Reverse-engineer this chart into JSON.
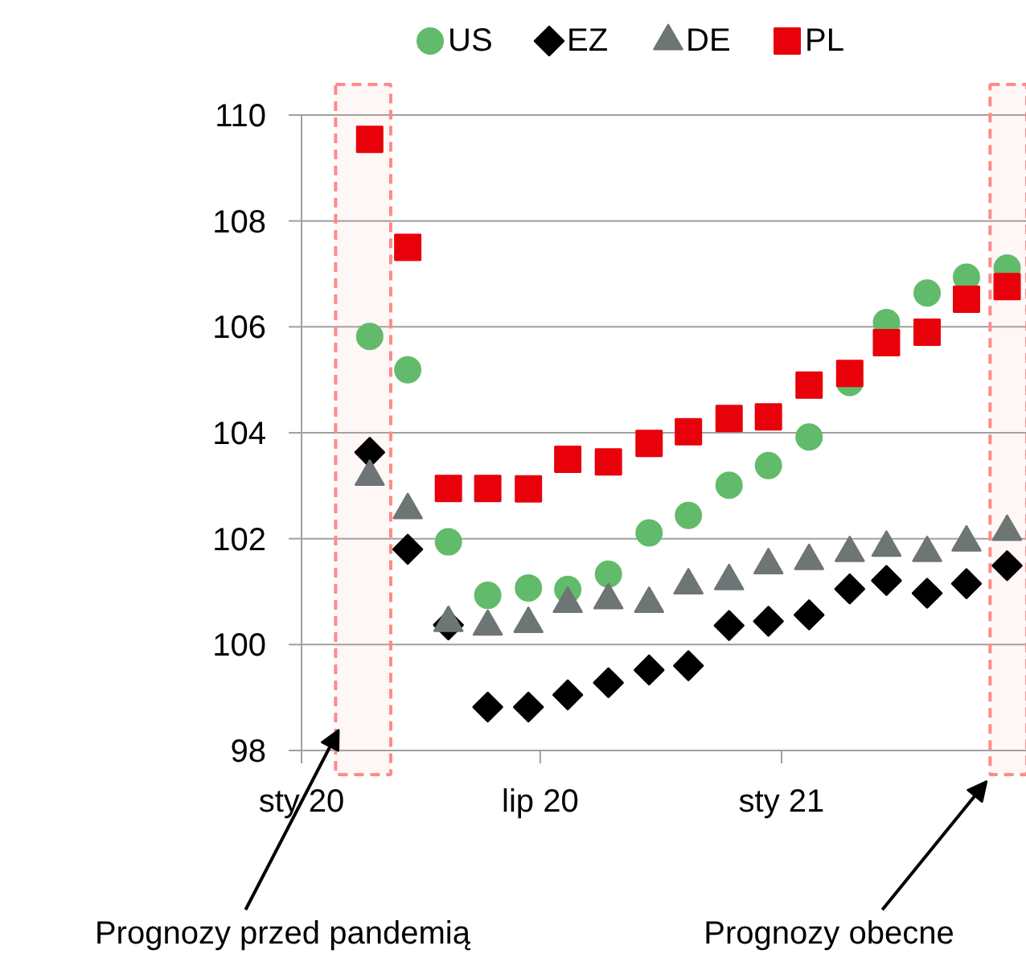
{
  "chart_data": {
    "type": "scatter",
    "x": [
      "2020-02-22",
      "2020-03-22",
      "2020-04-22",
      "2020-05-22",
      "2020-06-22",
      "2020-07-22",
      "2020-08-22",
      "2020-09-22",
      "2020-10-22",
      "2020-11-22",
      "2020-12-22",
      "2021-01-22",
      "2021-02-22",
      "2021-03-22",
      "2021-04-22",
      "2021-05-22",
      "2021-06-22"
    ],
    "xlim": [
      "2020-01-01",
      "2021-07-07"
    ],
    "xticks": [
      {
        "value": "2020-01",
        "label": "sty 20"
      },
      {
        "value": "2020-07",
        "label": "lip 20"
      },
      {
        "value": "2021-01",
        "label": "sty 21"
      }
    ],
    "ylim": [
      98,
      110
    ],
    "yticks": [
      98,
      100,
      102,
      104,
      106,
      108,
      110
    ],
    "grid": "y",
    "legend": "top",
    "series": [
      {
        "name": "US",
        "color": "#62bb6a",
        "marker": "circle",
        "values": [
          105.82,
          105.19,
          101.94,
          100.93,
          101.07,
          101.04,
          101.33,
          102.11,
          102.44,
          103.01,
          103.38,
          103.92,
          104.95,
          106.08,
          106.64,
          106.94,
          107.11
        ]
      },
      {
        "name": "EZ",
        "color": "#000000",
        "marker": "diamond",
        "values": [
          103.63,
          101.8,
          100.37,
          98.82,
          98.82,
          99.05,
          99.28,
          99.52,
          99.6,
          100.36,
          100.44,
          100.56,
          101.05,
          101.21,
          100.97,
          101.15,
          101.49
        ]
      },
      {
        "name": "DE",
        "color": "#6d7575",
        "marker": "triangle",
        "values": [
          103.17,
          102.54,
          100.41,
          100.34,
          100.39,
          100.77,
          100.84,
          100.77,
          101.12,
          101.2,
          101.5,
          101.58,
          101.73,
          101.83,
          101.73,
          101.93,
          102.13
        ]
      },
      {
        "name": "PL",
        "color": "#e8000b",
        "marker": "square",
        "values": [
          109.54,
          107.5,
          102.95,
          102.95,
          102.94,
          103.5,
          103.45,
          103.8,
          104.02,
          104.27,
          104.3,
          104.9,
          105.12,
          105.7,
          105.9,
          106.52,
          106.76
        ]
      }
    ],
    "bands": [
      {
        "axis": "x",
        "from": "2020-01-27",
        "to": "2020-03-09",
        "label": "Prognozy przed pandemią",
        "color": "#ff8a8a"
      },
      {
        "axis": "x",
        "from": "2021-06-09",
        "to": "2021-07-07",
        "label": "Prognozy obecne",
        "color": "#ff8a8a"
      }
    ]
  }
}
